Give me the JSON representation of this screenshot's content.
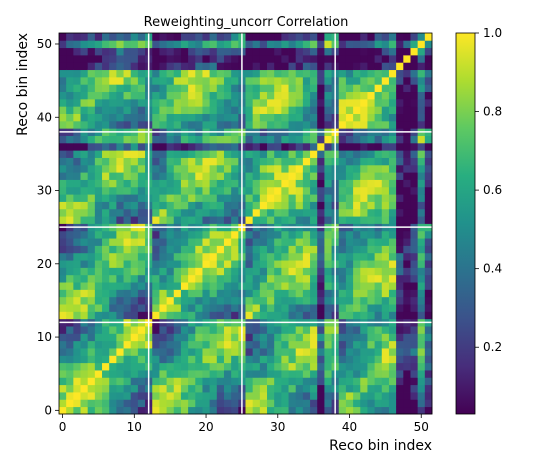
{
  "chart_data": {
    "type": "heatmap",
    "title": "Reweighting_uncorr Correlation",
    "xlabel": "Reco bin index",
    "ylabel": "Reco bin index",
    "n_bins": 52,
    "xlim": [
      0,
      52
    ],
    "ylim": [
      0,
      52
    ],
    "x_ticks": [
      0,
      10,
      20,
      30,
      40,
      50
    ],
    "y_ticks": [
      0,
      10,
      20,
      30,
      40,
      50
    ],
    "block_boundaries": [
      12.5,
      25.5,
      38.5
    ],
    "block_lengths": [
      13,
      13,
      13,
      13
    ],
    "colormap": "viridis",
    "colorbar": {
      "min": 0.03,
      "max": 1.0,
      "ticks": [
        0.2,
        0.4,
        0.6,
        0.8,
        1.0
      ],
      "tick_labels": [
        "0.2",
        "0.4",
        "0.6",
        "0.8",
        "1.0"
      ]
    },
    "diagonal_value": 1.0,
    "pattern_description": "52x52 symmetric correlation matrix of 4 blocks of 13 bins; diagonal is 1.0, values high (0.7-0.95) near the diagonal within each block and along the corresponding sub-diagonals between blocks, lower (0.05-0.5) far from the diagonal, with dark rows near bins 36 and 47-49."
  }
}
